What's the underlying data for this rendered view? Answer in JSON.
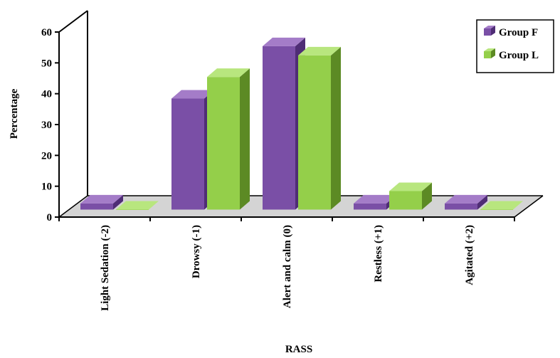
{
  "chart_data": {
    "type": "bar",
    "title": "",
    "xlabel": "RASS",
    "ylabel": "Percentage",
    "ylim": [
      0,
      60
    ],
    "yticks": [
      0,
      10,
      20,
      30,
      40,
      50,
      60
    ],
    "categories": [
      "Light Sedation (-2)",
      "Drowsy (-1)",
      "Alert and calm (0)",
      "Restless (+1)",
      "Agitated (+2)"
    ],
    "series": [
      {
        "name": "Group F",
        "values": [
          2,
          36,
          53,
          2,
          2
        ]
      },
      {
        "name": "Group L",
        "values": [
          0,
          43,
          50,
          6,
          0
        ]
      }
    ],
    "legend": "top-right",
    "grid": false,
    "style": "3d-column"
  },
  "colors": {
    "Group F": {
      "front": "#7a4fa6",
      "side": "#4f2d75",
      "top": "#a47cc8"
    },
    "Group L": {
      "front": "#94cf4a",
      "side": "#5c8a24",
      "top": "#b8e67e"
    },
    "floor": "#d4d4d4",
    "axis": "#000000"
  }
}
